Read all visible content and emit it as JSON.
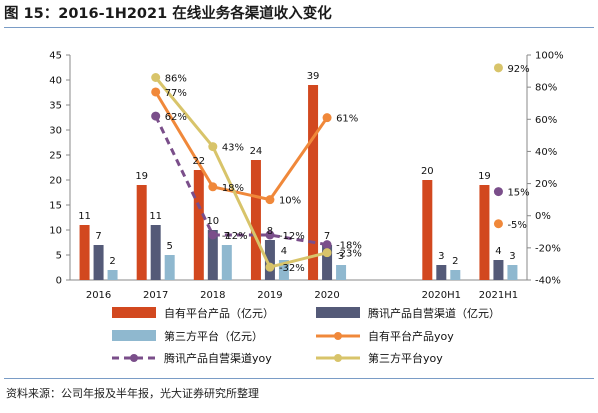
{
  "title": "图 15：2016-1H2021 在线业务各渠道收入变化",
  "source": "资料来源：公司年报及半年报，光大证券研究所整理",
  "chart_data": {
    "type": "bar",
    "categories": [
      "2016",
      "2017",
      "2018",
      "2019",
      "2020",
      "",
      "2020H1",
      "2021H1"
    ],
    "y_left_ticks": [
      "0",
      "5",
      "10",
      "15",
      "20",
      "25",
      "30",
      "35",
      "40",
      "45"
    ],
    "y_right_ticks": [
      "-40%",
      "-20%",
      "0%",
      "20%",
      "40%",
      "60%",
      "80%",
      "100%"
    ],
    "ylim_left": [
      0,
      45
    ],
    "ylim_right": [
      -40,
      100
    ],
    "legend_position": "bottom",
    "bar_series": [
      {
        "name": "自有平台产品（亿元）",
        "color": "#d2481f",
        "values": [
          11,
          19,
          22,
          24,
          39,
          null,
          20,
          19
        ],
        "labels": [
          "11",
          "19",
          "22",
          "24",
          "39",
          "",
          "20",
          "19"
        ]
      },
      {
        "name": "腾讯产品自营渠道（亿元）",
        "color": "#545a78",
        "values": [
          7,
          11,
          10,
          8,
          7,
          null,
          3,
          4
        ],
        "labels": [
          "7",
          "11",
          "10",
          "8",
          "7",
          "",
          "3",
          "4"
        ]
      },
      {
        "name": "第三方平台（亿元）",
        "color": "#8fb8cf",
        "values": [
          2,
          5,
          7,
          4,
          3,
          null,
          2,
          3
        ],
        "labels": [
          "2",
          "5",
          "7",
          "4",
          "3",
          "",
          "2",
          "3"
        ]
      }
    ],
    "line_series": [
      {
        "name": "自有平台产品yoy",
        "color": "#f0883a",
        "style": "solid",
        "values": [
          null,
          77,
          18,
          10,
          61,
          null,
          null,
          -5
        ],
        "labels": [
          "",
          "77%",
          "18%",
          "10%",
          "61%",
          "",
          "",
          "-5%"
        ],
        "connect_until": 4
      },
      {
        "name": "腾讯产品自营渠道yoy",
        "color": "#7a4e8a",
        "style": "dashed",
        "values": [
          null,
          62,
          -12,
          -12,
          -18,
          null,
          null,
          15
        ],
        "labels": [
          "",
          "62%",
          "-12%",
          "-12%",
          "-18%",
          "",
          "",
          "15%"
        ],
        "connect_until": 4
      },
      {
        "name": "第三方平台yoy",
        "color": "#d8c46a",
        "style": "solid",
        "values": [
          null,
          86,
          43,
          -32,
          -23,
          null,
          null,
          92
        ],
        "labels": [
          "",
          "86%",
          "43%",
          "-32%",
          "-23%",
          "",
          "",
          "92%"
        ],
        "connect_until": 4
      }
    ]
  }
}
